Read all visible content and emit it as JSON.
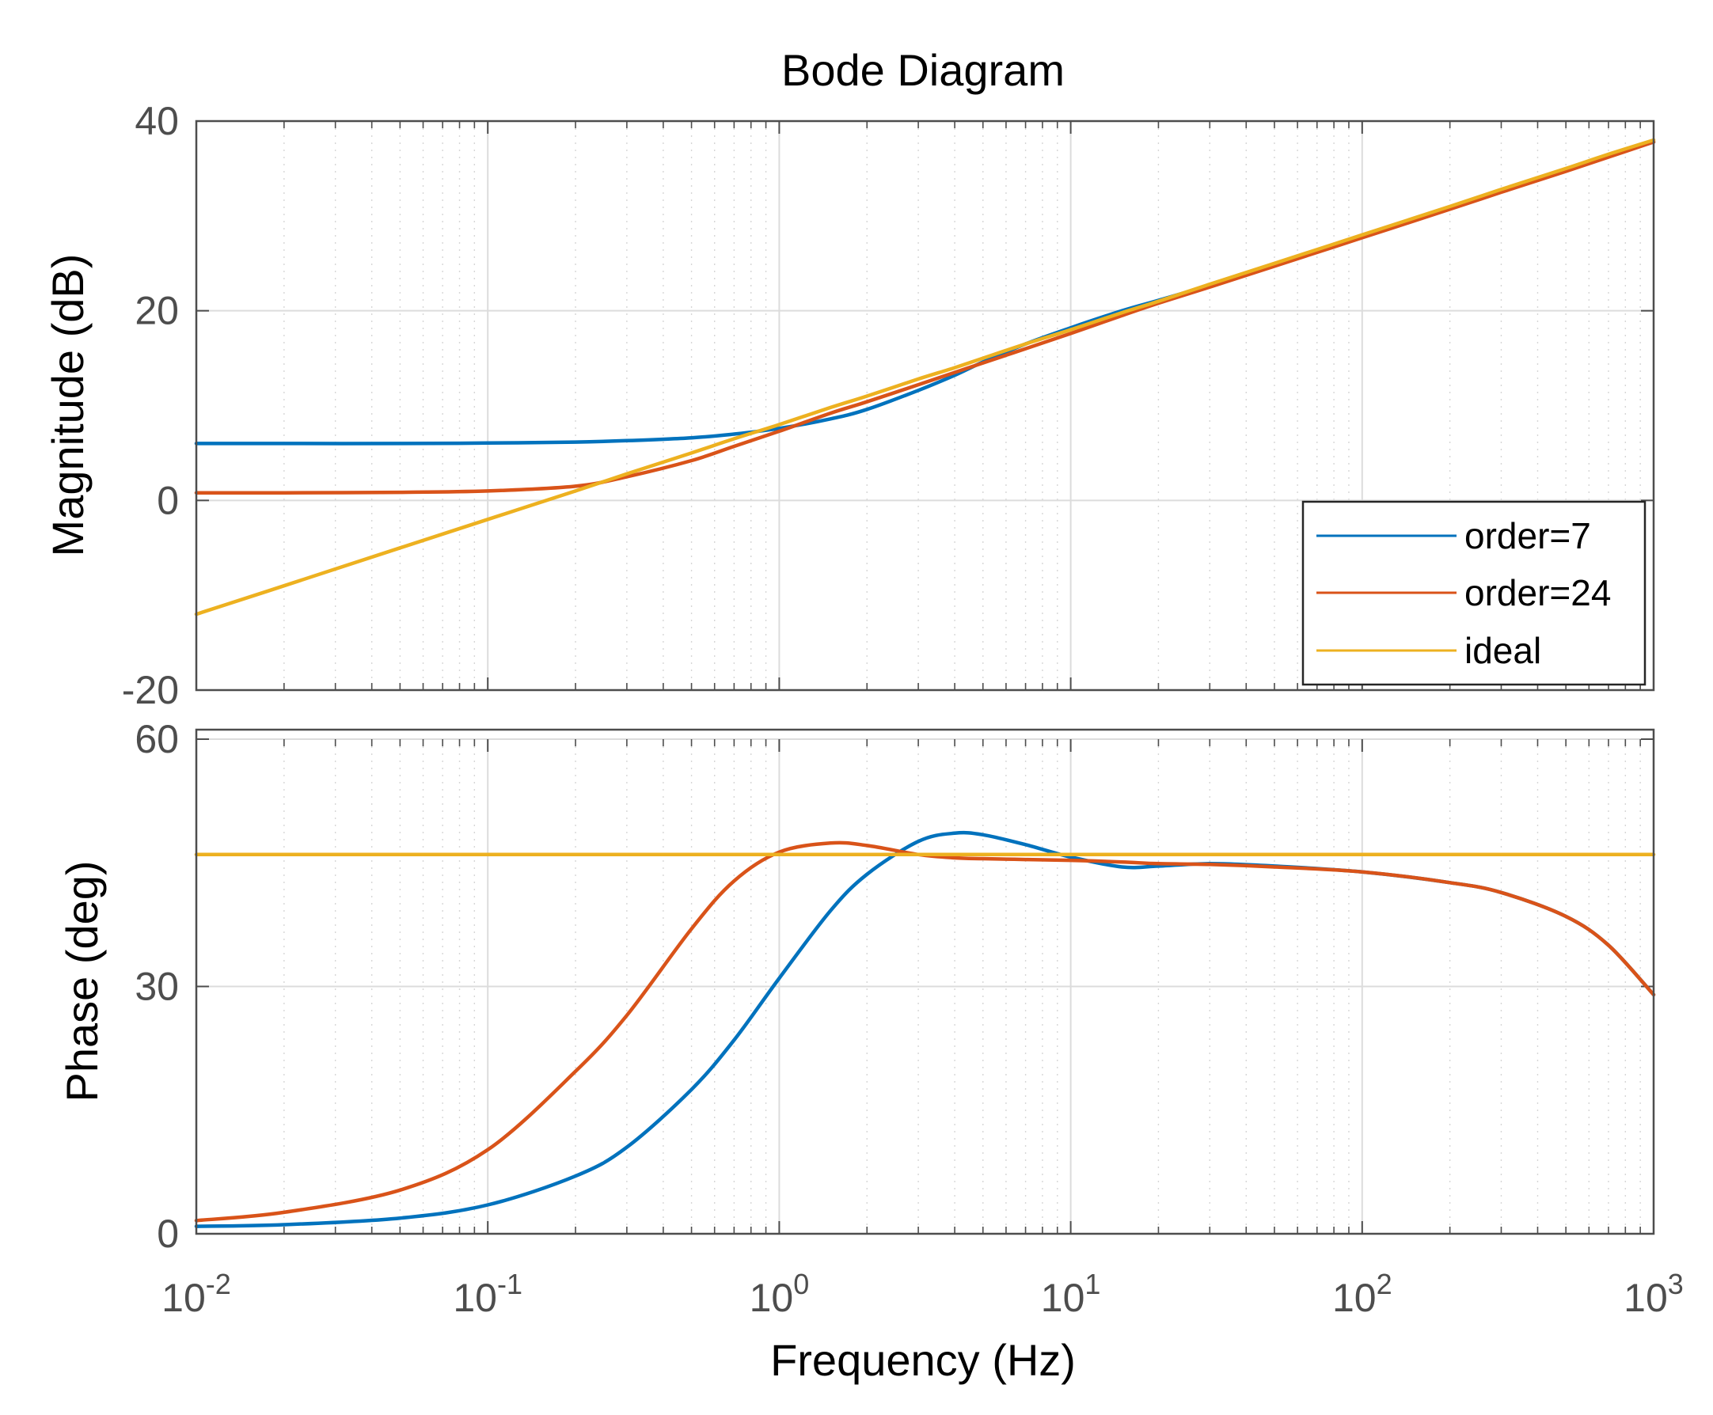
{
  "chart_data": {
    "type": "line",
    "title": "Bode Diagram",
    "xlabel": "Frequency  (Hz)",
    "x_scale": "log",
    "xlim": [
      0.01,
      1000
    ],
    "x_tick_labels": [
      {
        "base": "10",
        "exp": "-2"
      },
      {
        "base": "10",
        "exp": "-1"
      },
      {
        "base": "10",
        "exp": "0"
      },
      {
        "base": "10",
        "exp": "1"
      },
      {
        "base": "10",
        "exp": "2"
      },
      {
        "base": "10",
        "exp": "3"
      }
    ],
    "x_tick_values": [
      0.01,
      0.1,
      1,
      10,
      100,
      1000
    ],
    "grid": true,
    "legend_location": "bottom-right of magnitude panel",
    "colors": {
      "order7": "#0072BD",
      "order24": "#D95319",
      "ideal": "#EDB120"
    },
    "x": [
      0.01,
      0.02,
      0.05,
      0.1,
      0.2,
      0.3,
      0.5,
      0.7,
      1,
      1.5,
      2,
      3,
      4,
      5,
      7,
      10,
      15,
      20,
      30,
      50,
      100,
      200,
      300,
      500,
      700,
      1000
    ],
    "magnitude": {
      "ylabel": "Magnitude (dB)",
      "ylim": [
        -20,
        40
      ],
      "yticks": [
        -20,
        0,
        20,
        40
      ],
      "y_tick_labels": [
        "-20",
        "0",
        "20",
        "40"
      ],
      "series": [
        {
          "name": "order=7",
          "values": [
            6.0,
            6.0,
            6.0,
            6.05,
            6.15,
            6.3,
            6.6,
            7.0,
            7.6,
            8.6,
            9.6,
            11.6,
            13.2,
            14.6,
            16.5,
            18.2,
            20.0,
            21.1,
            22.7,
            24.9,
            27.9,
            30.9,
            32.6,
            34.8,
            36.3,
            37.8
          ]
        },
        {
          "name": "order=24",
          "values": [
            0.8,
            0.8,
            0.85,
            1.0,
            1.5,
            2.5,
            4.2,
            5.7,
            7.3,
            9.2,
            10.4,
            12.2,
            13.5,
            14.5,
            16.0,
            17.6,
            19.5,
            20.8,
            22.5,
            24.7,
            27.7,
            30.7,
            32.5,
            34.7,
            36.2,
            37.8
          ]
        },
        {
          "name": "ideal",
          "values": [
            -12.0,
            -9.0,
            -5.0,
            -2.0,
            1.0,
            2.8,
            5.0,
            6.5,
            8.0,
            9.8,
            11.0,
            12.8,
            14.0,
            15.0,
            16.5,
            18.0,
            19.8,
            21.0,
            22.8,
            25.0,
            28.0,
            31.0,
            32.8,
            35.0,
            36.5,
            38.0
          ]
        }
      ]
    },
    "phase": {
      "ylabel": "Phase (deg)",
      "ylim": [
        0,
        60
      ],
      "yticks": [
        0,
        30,
        60
      ],
      "y_tick_labels": [
        "0",
        "30",
        "60"
      ],
      "series": [
        {
          "name": "order=7",
          "values": [
            0.9,
            1.1,
            1.9,
            3.5,
            7.0,
            10.5,
            17.5,
            23.5,
            31.0,
            39.2,
            43.6,
            47.6,
            48.6,
            48.4,
            47.2,
            45.7,
            44.5,
            44.6,
            44.9,
            44.6,
            43.9,
            42.6,
            41.4,
            38.5,
            35.0,
            29.0
          ]
        },
        {
          "name": "order=24",
          "values": [
            1.6,
            2.6,
            5.3,
            10.2,
            19.7,
            26.5,
            37.0,
            42.8,
            46.3,
            47.4,
            47.1,
            46.0,
            45.6,
            45.5,
            45.4,
            45.3,
            45.1,
            44.9,
            44.8,
            44.5,
            43.9,
            42.6,
            41.4,
            38.5,
            35.0,
            29.0
          ]
        },
        {
          "name": "ideal",
          "values": [
            46.0,
            46.0,
            46.0,
            46.0,
            46.0,
            46.0,
            46.0,
            46.0,
            46.0,
            46.0,
            46.0,
            46.0,
            46.0,
            46.0,
            46.0,
            46.0,
            46.0,
            46.0,
            46.0,
            46.0,
            46.0,
            46.0,
            46.0,
            46.0,
            46.0,
            46.0
          ]
        }
      ]
    }
  }
}
